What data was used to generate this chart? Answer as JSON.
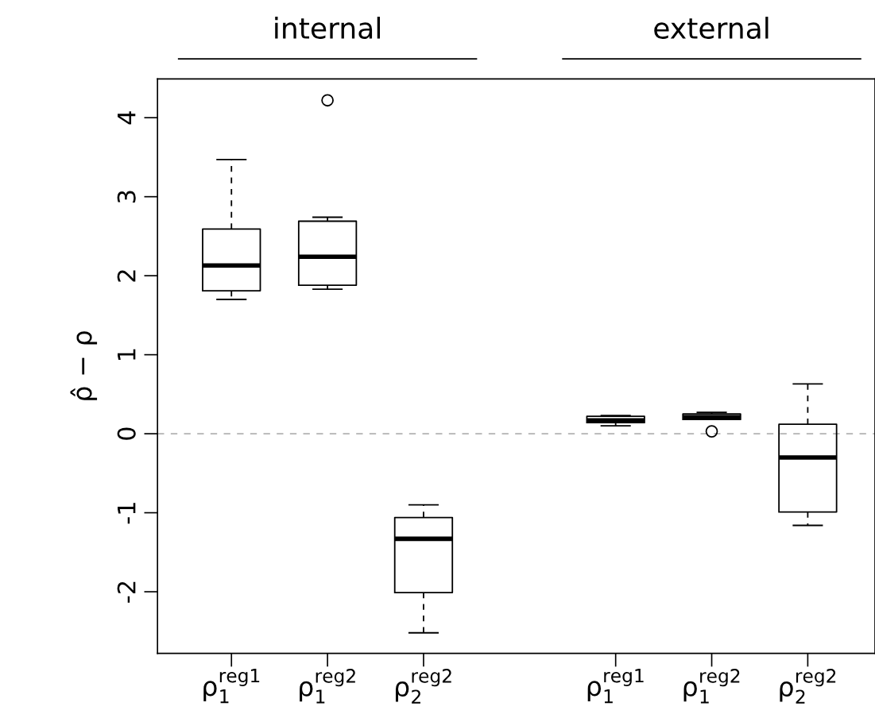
{
  "chart_data": {
    "type": "box",
    "ylabel": "ρ̂ − ρ",
    "categories": [
      "ρ$^{reg1}$$_{1}$",
      "ρ$^{reg2}$$_{1}$",
      "ρ$^{reg2}$$_{2}$",
      null,
      "ρ$^{reg1}$$_{1}$",
      "ρ$^{reg2}$$_{1}$",
      "ρ$^{reg2}$$_{2}$"
    ],
    "boxes": [
      {
        "low": 1.7,
        "q1": 1.81,
        "median": 2.13,
        "q3": 2.59,
        "high": 3.47
      },
      {
        "low": 1.83,
        "q1": 1.88,
        "median": 2.24,
        "q3": 2.69,
        "high": 2.74,
        "outliers": [
          4.22
        ]
      },
      {
        "low": -2.52,
        "q1": -2.01,
        "median": -1.33,
        "q3": -1.06,
        "high": -0.9
      },
      null,
      {
        "low": 0.1,
        "q1": 0.14,
        "median": 0.17,
        "q3": 0.22,
        "high": 0.23
      },
      {
        "low": 0.18,
        "q1": 0.18,
        "median": 0.21,
        "q3": 0.25,
        "high": 0.27,
        "outliers": [
          0.03
        ]
      },
      {
        "low": -1.16,
        "q1": -0.99,
        "median": -0.3,
        "q3": 0.12,
        "high": 0.63
      }
    ],
    "annotations": [
      "internal",
      "external"
    ],
    "ylim": [
      -2.78,
      4.49
    ],
    "yticks": [
      -2,
      -1,
      0,
      1,
      2,
      3,
      4
    ],
    "ref_lines": [
      {
        "axis": "y",
        "value": 0,
        "color": "#b3b3b3",
        "line_style": "dashed"
      }
    ],
    "grid": false
  }
}
